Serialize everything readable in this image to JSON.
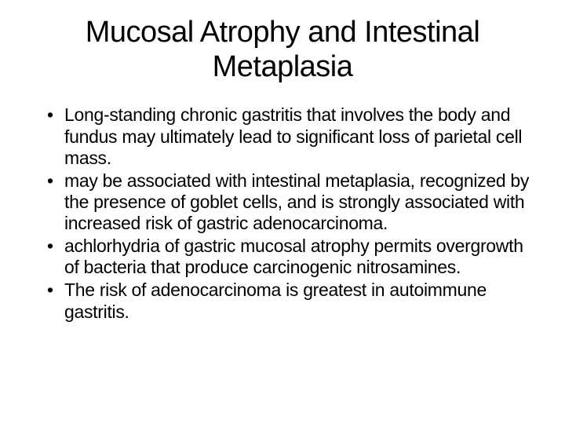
{
  "slide": {
    "title": "Mucosal Atrophy and Intestinal Metaplasia",
    "bullets": [
      "Long-standing chronic gastritis that involves the body and fundus may ultimately lead to significant loss of parietal cell mass.",
      "may be associated with intestinal metaplasia, recognized by the presence of goblet cells, and is strongly associated with increased risk of gastric adenocarcinoma.",
      "achlorhydria of gastric mucosal atrophy permits overgrowth of bacteria that produce carcinogenic nitrosamines.",
      "The risk of adenocarcinoma is greatest in autoimmune gastritis."
    ],
    "colors": {
      "background": "#ffffff",
      "text": "#000000"
    },
    "typography": {
      "title_fontsize": 38,
      "body_fontsize": 23,
      "font_family": "Trebuchet MS"
    }
  }
}
